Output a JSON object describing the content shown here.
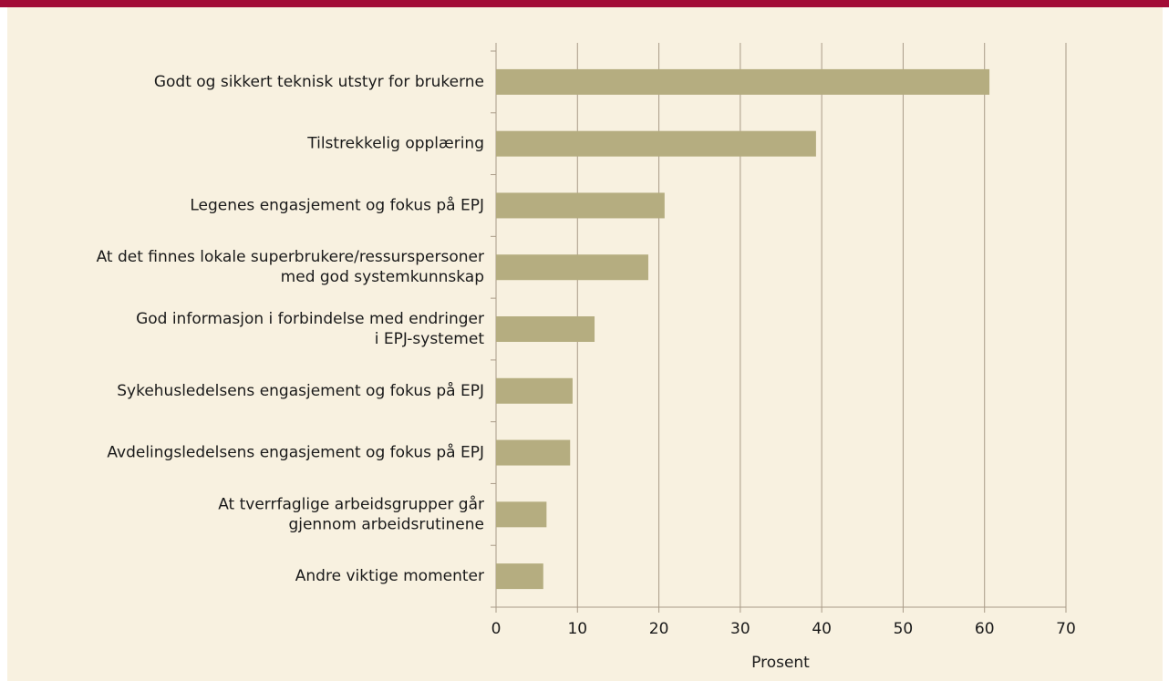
{
  "chart_data": {
    "type": "bar",
    "orientation": "horizontal",
    "categories": [
      "Godt og sikkert teknisk utstyr for brukerne",
      "Tilstrekkelig opplæring",
      "Legenes engasjement og fokus på EPJ",
      "At det finnes lokale superbrukere/ressurspersoner\nmed god systemkunnskap",
      "God informasjon i forbindelse med endringer\ni EPJ-systemet",
      "Sykehusledelsens engasjement og fokus på EPJ",
      "Avdelingsledelsens engasjement og fokus på EPJ",
      "At tverrfaglige arbeidsgrupper går\ngjennom arbeidsrutinene",
      "Andre viktige momenter"
    ],
    "values": [
      60.6,
      39.3,
      20.7,
      18.7,
      12.1,
      9.4,
      9.1,
      6.2,
      5.8
    ],
    "color": "#b5ad80",
    "xlim": [
      0,
      70
    ],
    "xticks": [
      0,
      10,
      20,
      30,
      40,
      50,
      60,
      70
    ],
    "xlabel": "Prosent",
    "grid": true
  }
}
